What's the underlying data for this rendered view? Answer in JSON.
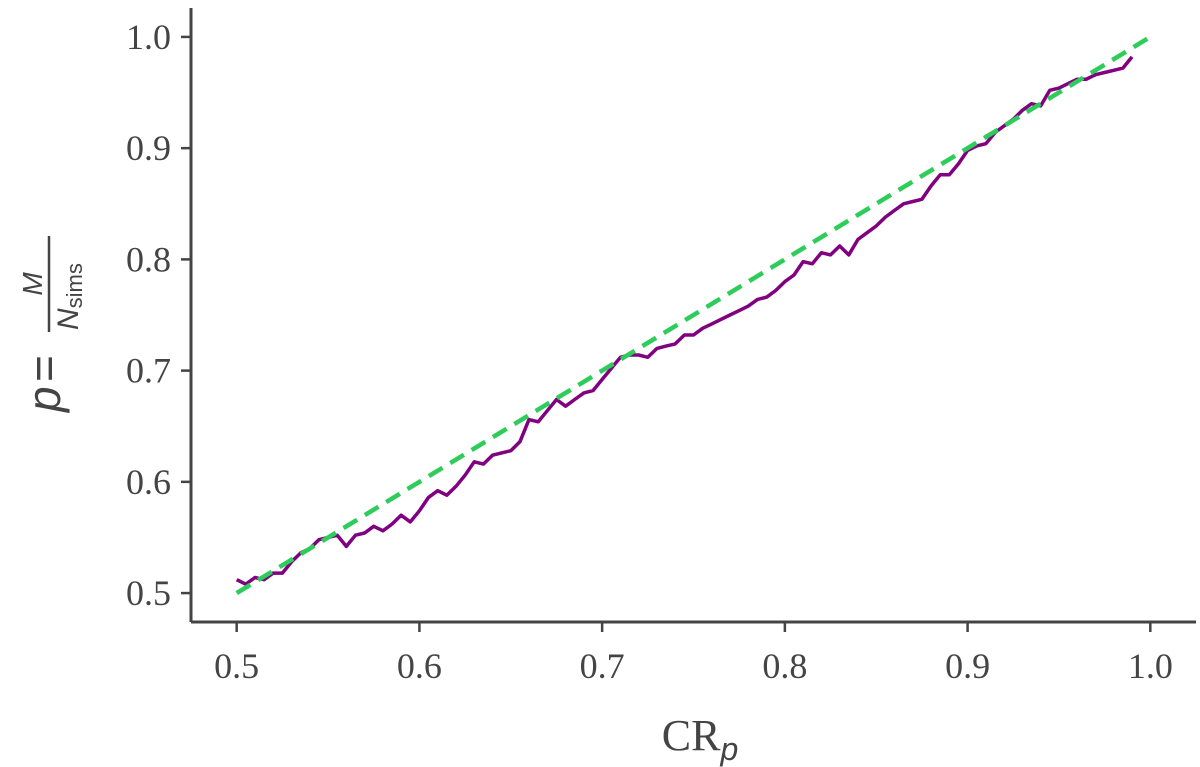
{
  "chart_data": {
    "type": "line",
    "title": "",
    "xlabel": "CR",
    "xlabel_sub": "p",
    "ylabel": "p = M / N_sims",
    "ylabel_parts": {
      "lhs": "p",
      "eq": "=",
      "num": "M",
      "den": "N",
      "den_sub": "sims"
    },
    "xlim": [
      0.475,
      1.025
    ],
    "ylim": [
      0.474,
      1.026
    ],
    "xticks": [
      0.5,
      0.6,
      0.7,
      0.8,
      0.9,
      1.0
    ],
    "yticks": [
      0.5,
      0.6,
      0.7,
      0.8,
      0.9,
      1.0
    ],
    "xtick_labels": [
      "0.5",
      "0.6",
      "0.7",
      "0.8",
      "0.9",
      "1.0"
    ],
    "ytick_labels": [
      "0.5",
      "0.6",
      "0.7",
      "0.8",
      "0.9",
      "1.0"
    ],
    "grid": false,
    "colors": {
      "observed": "#800080",
      "reference": "#2ecc5a",
      "axis": "#444444"
    },
    "series": [
      {
        "style": "solid",
        "color": "#800080",
        "x": [
          0.5,
          0.505,
          0.51,
          0.515,
          0.52,
          0.525,
          0.53,
          0.535,
          0.54,
          0.545,
          0.55,
          0.555,
          0.56,
          0.565,
          0.57,
          0.575,
          0.58,
          0.585,
          0.59,
          0.595,
          0.6,
          0.605,
          0.61,
          0.615,
          0.62,
          0.625,
          0.63,
          0.635,
          0.64,
          0.645,
          0.65,
          0.655,
          0.66,
          0.665,
          0.67,
          0.675,
          0.68,
          0.685,
          0.69,
          0.695,
          0.7,
          0.705,
          0.71,
          0.715,
          0.72,
          0.725,
          0.73,
          0.735,
          0.74,
          0.745,
          0.75,
          0.755,
          0.76,
          0.765,
          0.77,
          0.775,
          0.78,
          0.785,
          0.79,
          0.795,
          0.8,
          0.805,
          0.81,
          0.815,
          0.82,
          0.825,
          0.83,
          0.835,
          0.84,
          0.845,
          0.85,
          0.855,
          0.86,
          0.865,
          0.87,
          0.875,
          0.88,
          0.885,
          0.89,
          0.895,
          0.9,
          0.905,
          0.91,
          0.915,
          0.92,
          0.925,
          0.93,
          0.935,
          0.94,
          0.945,
          0.95,
          0.955,
          0.96,
          0.965,
          0.97,
          0.975,
          0.98,
          0.985,
          0.99
        ],
        "y": [
          0.512,
          0.508,
          0.514,
          0.512,
          0.518,
          0.518,
          0.528,
          0.536,
          0.54,
          0.548,
          0.55,
          0.552,
          0.542,
          0.552,
          0.554,
          0.56,
          0.556,
          0.562,
          0.57,
          0.564,
          0.574,
          0.586,
          0.592,
          0.588,
          0.596,
          0.606,
          0.618,
          0.616,
          0.624,
          0.626,
          0.628,
          0.636,
          0.656,
          0.654,
          0.664,
          0.674,
          0.668,
          0.674,
          0.68,
          0.682,
          0.692,
          0.702,
          0.712,
          0.714,
          0.714,
          0.712,
          0.72,
          0.722,
          0.724,
          0.732,
          0.732,
          0.738,
          0.742,
          0.746,
          0.75,
          0.754,
          0.758,
          0.764,
          0.766,
          0.772,
          0.78,
          0.786,
          0.798,
          0.796,
          0.806,
          0.804,
          0.812,
          0.804,
          0.818,
          0.824,
          0.83,
          0.838,
          0.844,
          0.85,
          0.852,
          0.854,
          0.866,
          0.876,
          0.876,
          0.886,
          0.898,
          0.902,
          0.904,
          0.914,
          0.92,
          0.926,
          0.934,
          0.94,
          0.938,
          0.952,
          0.954,
          0.958,
          0.962,
          0.962,
          0.966,
          0.968,
          0.97,
          0.972,
          0.982
        ]
      },
      {
        "style": "dashed",
        "color": "#2ecc5a",
        "x": [
          0.5,
          1.0
        ],
        "y": [
          0.5,
          1.0
        ]
      }
    ]
  }
}
